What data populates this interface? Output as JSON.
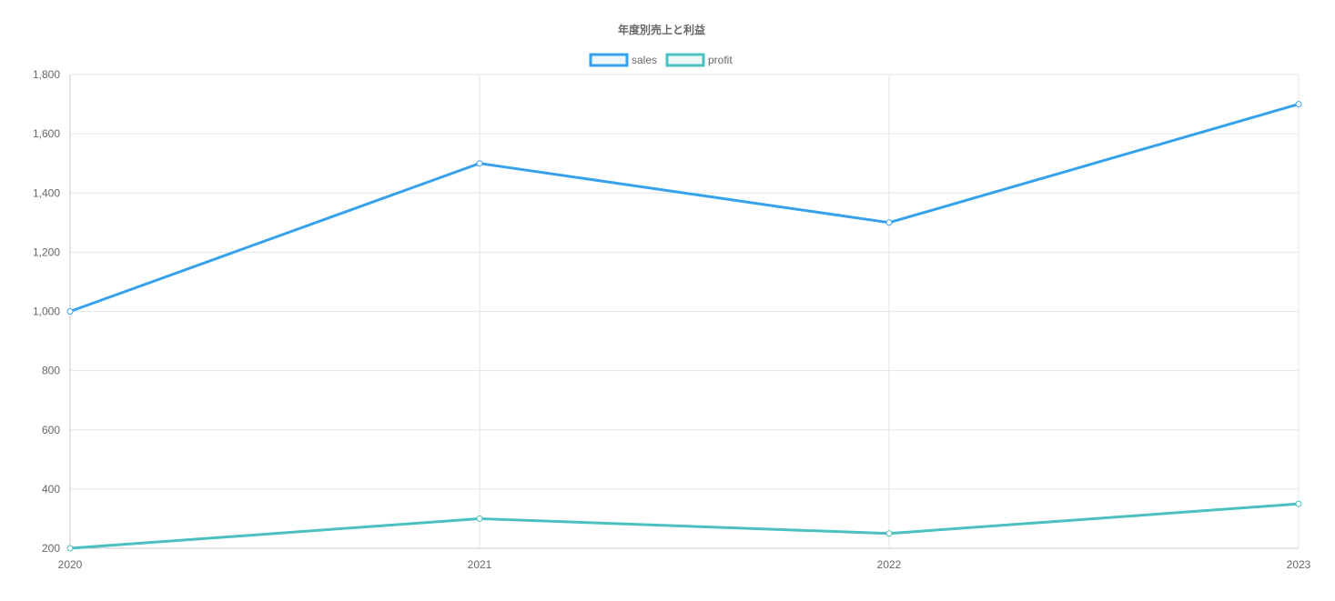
{
  "chart_data": {
    "type": "line",
    "title": "年度別売上と利益",
    "categories": [
      "2020",
      "2021",
      "2022",
      "2023"
    ],
    "series": [
      {
        "name": "sales",
        "values": [
          1000,
          1500,
          1300,
          1700
        ],
        "color": "#36a2eb"
      },
      {
        "name": "profit",
        "values": [
          200,
          300,
          250,
          350
        ],
        "color": "#4bc0c0"
      }
    ],
    "ylim": [
      200,
      1800
    ],
    "yticks": [
      200,
      400,
      600,
      800,
      1000,
      1200,
      1400,
      1600,
      1800
    ],
    "ytick_labels": [
      "200",
      "400",
      "600",
      "800",
      "1,000",
      "1,200",
      "1,400",
      "1,600",
      "1,800"
    ],
    "xlabel": "",
    "ylabel": "",
    "grid": true,
    "legend_position": "top-center"
  }
}
